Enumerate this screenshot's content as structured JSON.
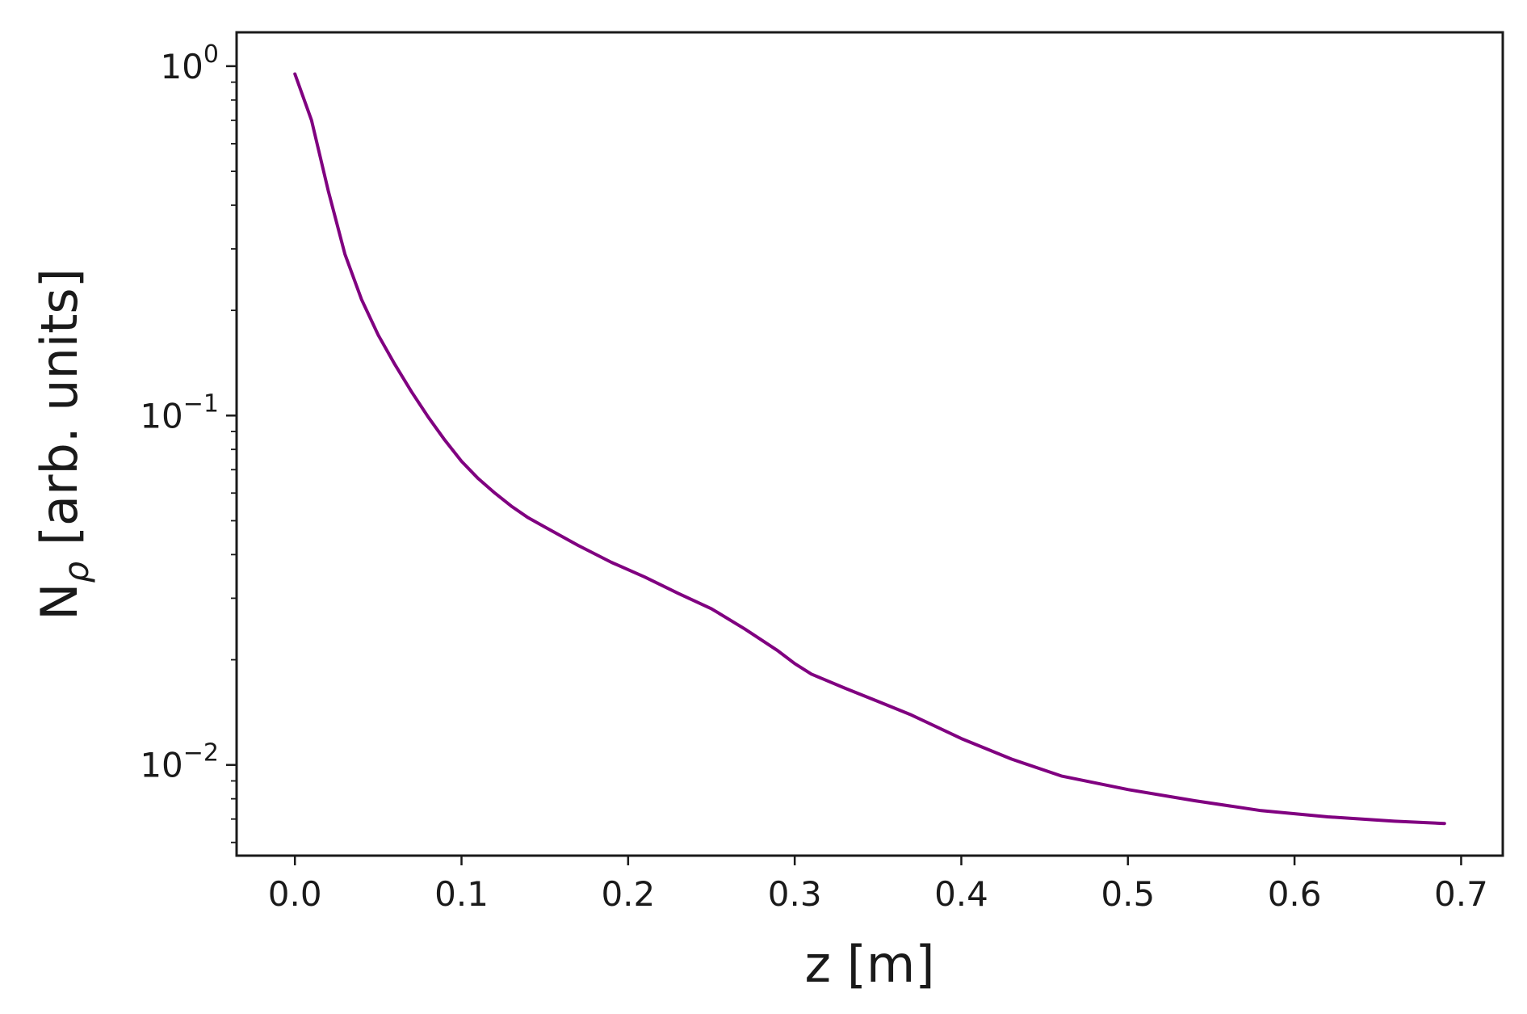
{
  "chart_data": {
    "type": "line",
    "title": "",
    "xlabel": "z [m]",
    "ylabel": "N",
    "ylabel_subscript": "ρ",
    "ylabel_rest": " [arb. units]",
    "y_scale": "log",
    "xlim": [
      -0.035,
      0.725
    ],
    "ylim": [
      0.0055,
      1.25
    ],
    "grid": false,
    "legend": "none",
    "x_ticks": [
      {
        "value": 0.0,
        "label": "0.0"
      },
      {
        "value": 0.1,
        "label": "0.1"
      },
      {
        "value": 0.2,
        "label": "0.2"
      },
      {
        "value": 0.3,
        "label": "0.3"
      },
      {
        "value": 0.4,
        "label": "0.4"
      },
      {
        "value": 0.5,
        "label": "0.5"
      },
      {
        "value": 0.6,
        "label": "0.6"
      },
      {
        "value": 0.7,
        "label": "0.7"
      }
    ],
    "y_ticks": [
      {
        "value": 1,
        "base": "10",
        "exp": "0"
      },
      {
        "value": 0.1,
        "base": "10",
        "exp": "−1"
      },
      {
        "value": 0.01,
        "base": "10",
        "exp": "−2"
      }
    ],
    "series": [
      {
        "color": "#800080",
        "x": [
          0.0,
          0.01,
          0.02,
          0.03,
          0.04,
          0.05,
          0.06,
          0.07,
          0.08,
          0.09,
          0.1,
          0.11,
          0.12,
          0.13,
          0.14,
          0.15,
          0.17,
          0.19,
          0.21,
          0.23,
          0.25,
          0.27,
          0.29,
          0.3,
          0.31,
          0.33,
          0.35,
          0.37,
          0.4,
          0.43,
          0.46,
          0.5,
          0.54,
          0.58,
          0.62,
          0.66,
          0.69
        ],
        "y": [
          0.95,
          0.7,
          0.44,
          0.29,
          0.215,
          0.17,
          0.14,
          0.117,
          0.099,
          0.085,
          0.074,
          0.066,
          0.06,
          0.055,
          0.051,
          0.048,
          0.0425,
          0.038,
          0.0345,
          0.031,
          0.028,
          0.0245,
          0.0212,
          0.0195,
          0.0182,
          0.0166,
          0.0152,
          0.0139,
          0.0119,
          0.0104,
          0.0093,
          0.0085,
          0.0079,
          0.0074,
          0.0071,
          0.0069,
          0.0068
        ]
      }
    ]
  }
}
